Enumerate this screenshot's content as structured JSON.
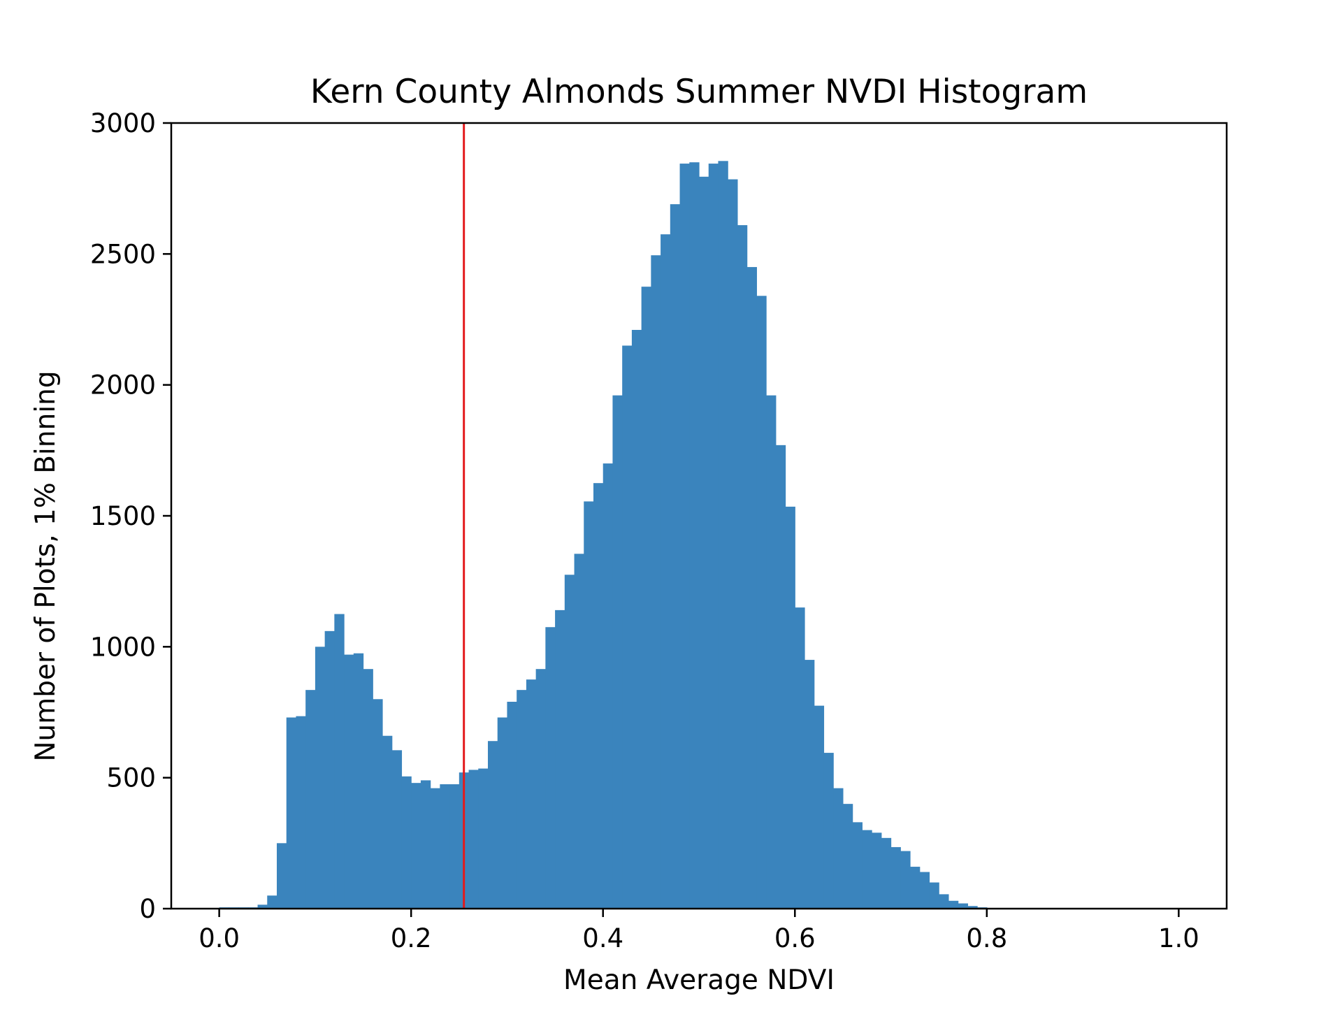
{
  "chart_data": {
    "type": "bar",
    "title": "Kern County Almonds Summer NVDI Histogram",
    "xlabel": "Mean Average NDVI",
    "ylabel": "Number of Plots, 1% Binning",
    "xlim": [
      -0.05,
      1.05
    ],
    "ylim": [
      0,
      3000
    ],
    "x_ticks": [
      0.0,
      0.2,
      0.4,
      0.6,
      0.8,
      1.0
    ],
    "x_tick_labels": [
      "0.0",
      "0.2",
      "0.4",
      "0.6",
      "0.8",
      "1.0"
    ],
    "y_ticks": [
      0,
      500,
      1000,
      1500,
      2000,
      2500,
      3000
    ],
    "y_tick_labels": [
      "0",
      "500",
      "1000",
      "1500",
      "2000",
      "2500",
      "3000"
    ],
    "bin_start": 0.0,
    "bin_width": 0.01,
    "bin_edges_note": "",
    "counts": [
      5,
      5,
      5,
      5,
      15,
      50,
      250,
      730,
      735,
      835,
      1000,
      1060,
      1125,
      970,
      975,
      915,
      800,
      660,
      605,
      505,
      480,
      490,
      460,
      475,
      475,
      520,
      530,
      535,
      640,
      730,
      790,
      835,
      875,
      915,
      1075,
      1140,
      1275,
      1355,
      1555,
      1625,
      1700,
      1960,
      2150,
      2210,
      2375,
      2495,
      2575,
      2690,
      2845,
      2850,
      2795,
      2845,
      2855,
      2785,
      2610,
      2450,
      2340,
      1960,
      1770,
      1535,
      1150,
      950,
      775,
      595,
      460,
      400,
      330,
      300,
      290,
      270,
      235,
      220,
      160,
      140,
      100,
      55,
      30,
      20,
      10,
      5,
      2,
      0,
      0,
      0,
      0,
      0,
      0,
      0,
      0,
      0,
      0,
      0,
      0,
      0,
      0,
      0,
      0,
      0,
      0,
      0
    ],
    "threshold_line": {
      "x": 0.255,
      "color": "#e31a1c"
    },
    "bar_color": "#3a84bd",
    "grid": false,
    "legend": "none"
  }
}
